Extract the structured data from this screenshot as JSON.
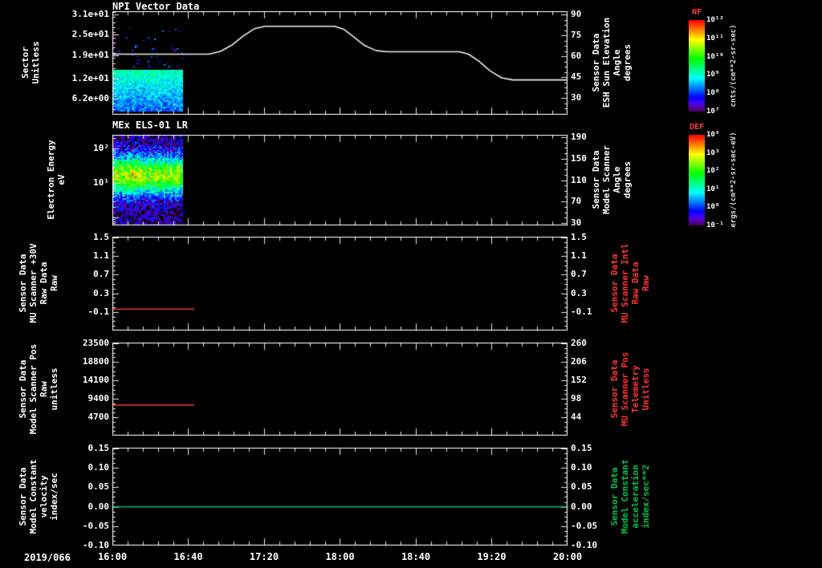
{
  "chart_data": {
    "type": "multi-panel-timeseries-spectrogram",
    "x": {
      "date": "2019/066",
      "lim": [
        16,
        20
      ],
      "minor_minutes": 8,
      "ticks": [
        {
          "label": "16:00",
          "v": 16.0
        },
        {
          "label": "16:40",
          "v": 16.6667
        },
        {
          "label": "17:20",
          "v": 17.3333
        },
        {
          "label": "18:00",
          "v": 18.0
        },
        {
          "label": "18:40",
          "v": 18.6667
        },
        {
          "label": "19:20",
          "v": 19.3333
        },
        {
          "label": "20:00",
          "v": 20.0
        }
      ]
    },
    "panels": [
      {
        "id": "npi-vector-data",
        "title": "NPI Vector Data",
        "ylabel": "Sector\nUnitless",
        "right_label": "Sensor Data\nESH Sun Elevation\nAngle\ndegrees",
        "right_label_color": "#ffffff",
        "left_axis": {
          "lim": [
            1.5,
            31.9
          ],
          "ticks": [
            {
              "label": "3.1e+01",
              "v": 31
            },
            {
              "label": "2.5e+01",
              "v": 25
            },
            {
              "label": "1.9e+01",
              "v": 19
            },
            {
              "label": "1.2e+01",
              "v": 12
            },
            {
              "label": "6.2e+00",
              "v": 6.2
            }
          ]
        },
        "right_axis": {
          "lim": [
            18,
            92.3
          ],
          "ticks": [
            {
              "label": "90",
              "v": 90
            },
            {
              "label": "75",
              "v": 75
            },
            {
              "label": "60",
              "v": 60
            },
            {
              "label": "45",
              "v": 45
            },
            {
              "label": "30",
              "v": 30
            }
          ]
        },
        "line": {
          "name": "sun-elevation-angle",
          "color": "#f0f0f0",
          "axis": "right",
          "points": [
            [
              16.0,
              61.5
            ],
            [
              16.85,
              61.5
            ],
            [
              16.95,
              63.5
            ],
            [
              17.05,
              68
            ],
            [
              17.15,
              74.5
            ],
            [
              17.25,
              79.8
            ],
            [
              17.34,
              81.5
            ],
            [
              17.95,
              81.5
            ],
            [
              18.03,
              79.5
            ],
            [
              18.12,
              74
            ],
            [
              18.22,
              67.5
            ],
            [
              18.32,
              64
            ],
            [
              18.42,
              63.2
            ],
            [
              19.05,
              63.2
            ],
            [
              19.13,
              61.5
            ],
            [
              19.22,
              56.5
            ],
            [
              19.32,
              49.5
            ],
            [
              19.42,
              44.5
            ],
            [
              19.52,
              43
            ],
            [
              20.0,
              43
            ]
          ]
        },
        "spectrogram": {
          "t_range": [
            16.0,
            16.62
          ],
          "regions": [
            {
              "type": "sparse",
              "fy": [
                0.16,
                0.58
              ],
              "density": 0.05,
              "v": [
                0.06,
                0.34
              ]
            },
            {
              "type": "gradient",
              "fy": [
                0.57,
                0.96
              ],
              "v_top": 0.46,
              "v_bot": 0.28,
              "noise": 0.18
            }
          ]
        }
      },
      {
        "id": "mex-els-01-lr",
        "title": "MEx ELS-01 LR",
        "ylabel": "Electron Energy\neV",
        "right_label": "Sensor Data\nModel Scanner\nAngle\ndegrees",
        "right_label_color": "#ffffff",
        "left_axis": {
          "log": true,
          "lim": [
            0.6,
            250
          ],
          "ticks": [
            {
              "label": "10²",
              "v": 100
            },
            {
              "label": "10¹",
              "v": 10
            }
          ]
        },
        "right_axis": {
          "lim": [
            25.5,
            194.6
          ],
          "ticks": [
            {
              "label": "190",
              "v": 190
            },
            {
              "label": "150",
              "v": 150
            },
            {
              "label": "110",
              "v": 110
            },
            {
              "label": "70",
              "v": 70
            },
            {
              "label": "30",
              "v": 30
            }
          ]
        },
        "spectrogram": {
          "t_range": [
            16.0,
            16.62
          ],
          "regions": [
            {
              "type": "band",
              "fy": [
                0.01,
                0.99
              ],
              "center": 0.44,
              "sigma": 0.21,
              "peak": 0.62,
              "floor": 0.08,
              "noise": 0.28
            }
          ]
        }
      },
      {
        "id": "mu-scanner-plus30v",
        "ylabel": "Sensor Data\nMU Scanner +30V\nRaw Data\nRaw",
        "right_label": "Sensor Data\nMU Scanner Intl\nRaw Data\nRaw",
        "right_label_color": "#ff3333",
        "left_axis": {
          "lim": [
            -0.5,
            1.52
          ],
          "ticks": [
            {
              "label": "1.5",
              "v": 1.5
            },
            {
              "label": "1.1",
              "v": 1.1
            },
            {
              "label": "0.7",
              "v": 0.7
            },
            {
              "label": "0.3",
              "v": 0.3
            },
            {
              "label": "-0.1",
              "v": -0.1
            }
          ]
        },
        "right_axis": {
          "lim": [
            -0.5,
            1.52
          ],
          "ticks": [
            {
              "label": "1.5",
              "v": 1.5
            },
            {
              "label": "1.1",
              "v": 1.1
            },
            {
              "label": "0.7",
              "v": 0.7
            },
            {
              "label": "0.3",
              "v": 0.3
            },
            {
              "label": "-0.1",
              "v": -0.1
            }
          ]
        },
        "line": {
          "name": "mu-scanner-30v-raw",
          "color": "#d23232",
          "axis": "left",
          "points": [
            [
              16.0,
              -0.04
            ],
            [
              16.72,
              -0.04
            ]
          ]
        }
      },
      {
        "id": "model-scanner-pos",
        "ylabel": "Sensor Data\nModel Scanner Pos\nRaw\nunitless",
        "right_label": "Sensor Data\nMU Scanner Pos\nTelemetry\nUnitless",
        "right_label_color": "#ff3333",
        "left_axis": {
          "lim": [
            0,
            23750
          ],
          "ticks": [
            {
              "label": "23500",
              "v": 23500
            },
            {
              "label": "18800",
              "v": 18800
            },
            {
              "label": "14100",
              "v": 14100
            },
            {
              "label": "9400",
              "v": 9400
            },
            {
              "label": "4700",
              "v": 4700
            }
          ]
        },
        "right_axis": {
          "lim": [
            -10,
            263
          ],
          "ticks": [
            {
              "label": "260",
              "v": 260
            },
            {
              "label": "206",
              "v": 206
            },
            {
              "label": "152",
              "v": 152
            },
            {
              "label": "98",
              "v": 98
            },
            {
              "label": "44",
              "v": 44
            }
          ]
        },
        "line": {
          "name": "model-scanner-pos-raw",
          "color": "#d23232",
          "axis": "left",
          "points": [
            [
              16.0,
              7800
            ],
            [
              16.72,
              7800
            ]
          ]
        }
      },
      {
        "id": "model-constant-velocity",
        "ylabel": "Sensor Data\nModel Constant\nvelocity\nindex/sec",
        "right_label": "Sensor Data\nModel Constant\nacceleration\nindex/sec**2",
        "right_label_color": "#00c050",
        "left_axis": {
          "lim": [
            -0.1,
            0.152
          ],
          "ticks": [
            {
              "label": "0.15",
              "v": 0.15
            },
            {
              "label": "0.10",
              "v": 0.1
            },
            {
              "label": "0.05",
              "v": 0.05
            },
            {
              "label": "0.00",
              "v": 0.0
            },
            {
              "label": "-0.05",
              "v": -0.05
            },
            {
              "label": "-0.10",
              "v": -0.1
            }
          ]
        },
        "right_axis": {
          "lim": [
            -0.1,
            0.152
          ],
          "ticks": [
            {
              "label": "0.15",
              "v": 0.15
            },
            {
              "label": "0.10",
              "v": 0.1
            },
            {
              "label": "0.05",
              "v": 0.05
            },
            {
              "label": "0.00",
              "v": 0.0
            },
            {
              "label": "-0.05",
              "v": -0.05
            },
            {
              "label": "-0.10",
              "v": -0.1
            }
          ]
        },
        "line": {
          "name": "model-constant-velocity",
          "color": "#00a868",
          "axis": "left",
          "points": [
            [
              16.0,
              0.0
            ],
            [
              20.0,
              0.0
            ]
          ]
        }
      }
    ],
    "colorbars": [
      {
        "title": "NF",
        "title_color": "#ff4040",
        "unit": "cnts/(cm**2-sr-sec)",
        "ticks": [
          "10¹²",
          "10¹¹",
          "10¹⁰",
          "10⁹",
          "10⁸",
          "10⁷"
        ]
      },
      {
        "title": "DEF",
        "title_color": "#ff4040",
        "unit": "ergs/(cm**2-sr-sec-eV)",
        "ticks": [
          "10⁴",
          "10³",
          "10²",
          "10¹",
          "10⁰",
          "10⁻¹"
        ]
      }
    ]
  }
}
